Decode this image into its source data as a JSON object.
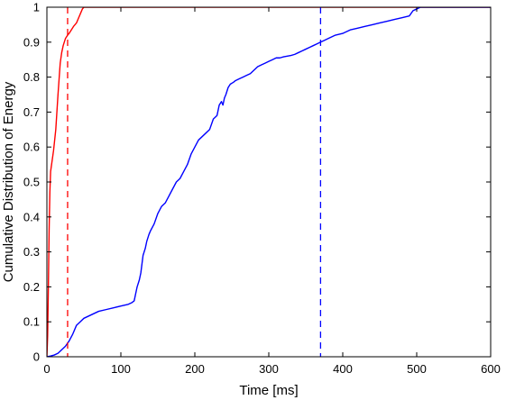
{
  "chart_data": {
    "type": "line",
    "title": "",
    "xlabel": "Time [ms]",
    "ylabel": "Cumulative Distribution of Energy",
    "xlim": [
      0,
      600
    ],
    "ylim": [
      0,
      1
    ],
    "xticks": [
      0,
      100,
      200,
      300,
      400,
      500,
      600
    ],
    "yticks": [
      0,
      0.1,
      0.2,
      0.3,
      0.4,
      0.5,
      0.6,
      0.7,
      0.8,
      0.9,
      1
    ],
    "grid": false,
    "series": [
      {
        "name": "",
        "color": "#ff0000",
        "style": "solid",
        "x": [
          0,
          1,
          2,
          3,
          4,
          5,
          7,
          9,
          12,
          15,
          18,
          20,
          22,
          25,
          28,
          30,
          33,
          36,
          40,
          43,
          46,
          48,
          50,
          600
        ],
        "y": [
          0,
          0.06,
          0.2,
          0.36,
          0.47,
          0.53,
          0.56,
          0.59,
          0.65,
          0.75,
          0.84,
          0.87,
          0.89,
          0.91,
          0.92,
          0.925,
          0.935,
          0.945,
          0.955,
          0.97,
          0.985,
          0.995,
          1.0,
          1.0
        ]
      },
      {
        "name": "",
        "color": "#0000ff",
        "style": "solid",
        "x": [
          0,
          5,
          10,
          15,
          20,
          25,
          30,
          35,
          40,
          45,
          50,
          60,
          70,
          80,
          90,
          100,
          110,
          115,
          118,
          120,
          122,
          125,
          127,
          130,
          133,
          135,
          138,
          140,
          145,
          150,
          155,
          160,
          165,
          170,
          175,
          180,
          185,
          190,
          195,
          200,
          205,
          210,
          215,
          220,
          225,
          230,
          233,
          236,
          238,
          240,
          242,
          245,
          248,
          252,
          255,
          260,
          265,
          270,
          275,
          280,
          285,
          290,
          295,
          300,
          305,
          310,
          315,
          320,
          325,
          330,
          335,
          340,
          345,
          350,
          355,
          360,
          365,
          370,
          375,
          380,
          390,
          400,
          410,
          420,
          430,
          440,
          450,
          460,
          470,
          480,
          490,
          495,
          500,
          505,
          510,
          515,
          600
        ],
        "y": [
          0,
          0.002,
          0.005,
          0.01,
          0.02,
          0.03,
          0.045,
          0.065,
          0.09,
          0.1,
          0.11,
          0.12,
          0.13,
          0.135,
          0.14,
          0.145,
          0.15,
          0.155,
          0.16,
          0.18,
          0.2,
          0.22,
          0.24,
          0.29,
          0.31,
          0.33,
          0.35,
          0.36,
          0.38,
          0.41,
          0.43,
          0.44,
          0.46,
          0.48,
          0.5,
          0.51,
          0.53,
          0.55,
          0.58,
          0.6,
          0.62,
          0.63,
          0.64,
          0.65,
          0.68,
          0.69,
          0.72,
          0.73,
          0.72,
          0.74,
          0.75,
          0.77,
          0.78,
          0.785,
          0.79,
          0.795,
          0.8,
          0.805,
          0.81,
          0.82,
          0.83,
          0.835,
          0.84,
          0.845,
          0.85,
          0.855,
          0.855,
          0.858,
          0.86,
          0.862,
          0.865,
          0.87,
          0.875,
          0.88,
          0.885,
          0.89,
          0.895,
          0.9,
          0.905,
          0.91,
          0.92,
          0.925,
          0.935,
          0.94,
          0.945,
          0.95,
          0.955,
          0.96,
          0.965,
          0.97,
          0.975,
          0.99,
          0.995,
          1.0,
          1.0,
          1.0,
          1.0
        ]
      }
    ],
    "vlines": [
      {
        "x": 28,
        "color": "#ff0000",
        "style": "dashed"
      },
      {
        "x": 370,
        "color": "#0000ff",
        "style": "dashed"
      }
    ]
  }
}
